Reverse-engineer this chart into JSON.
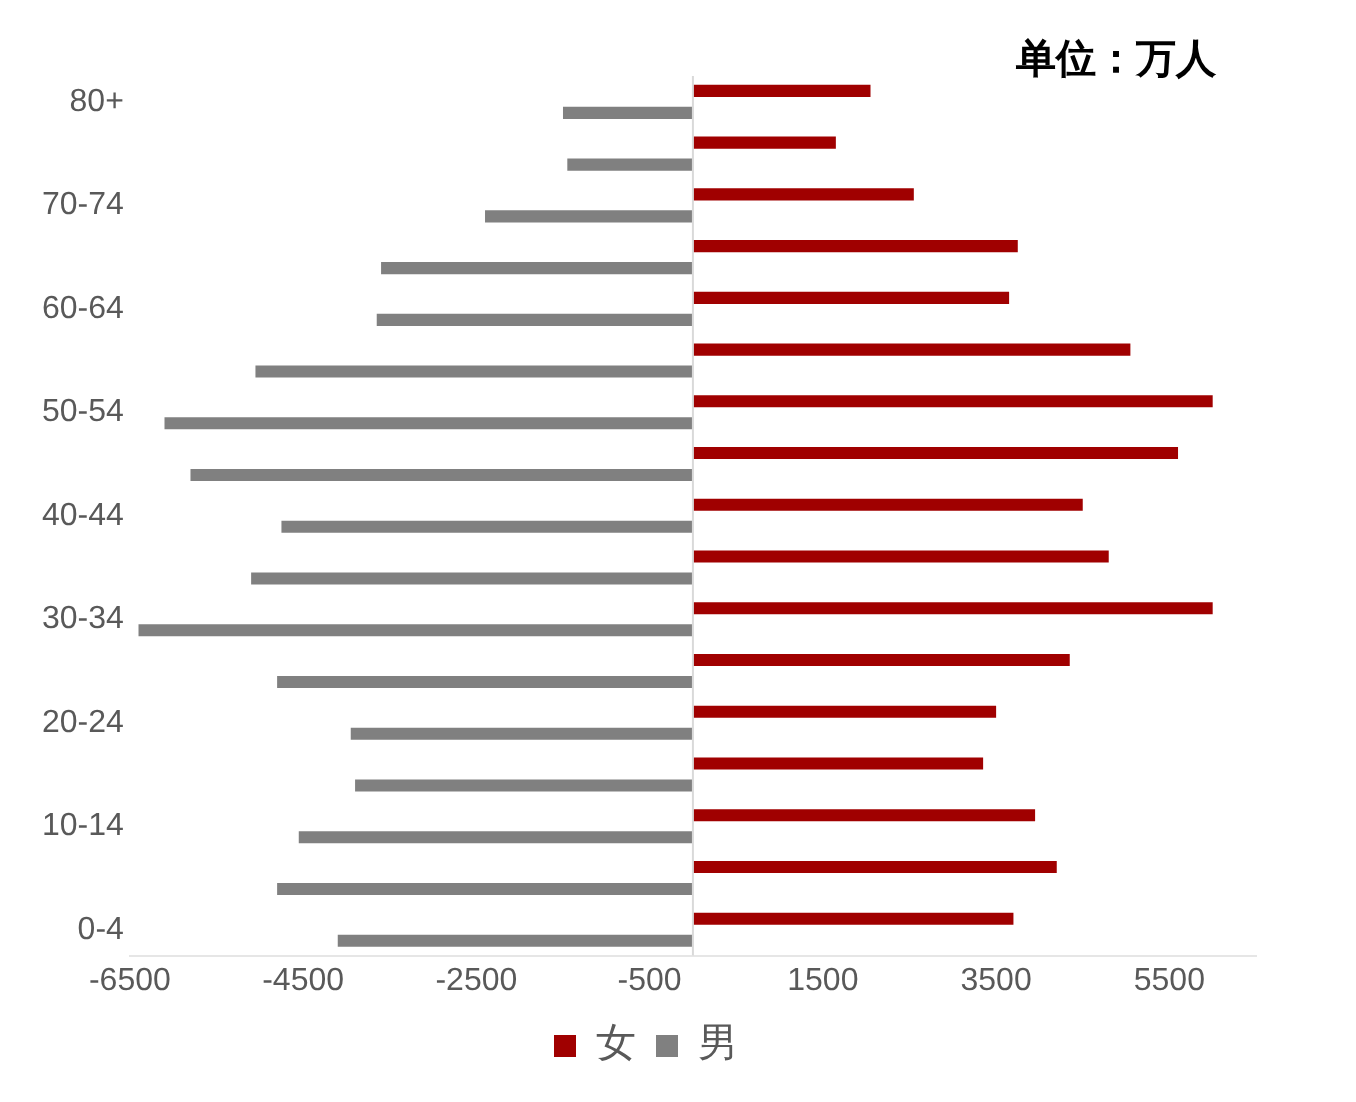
{
  "chart_data": {
    "type": "bar",
    "orientation": "horizontal",
    "categories": [
      "80+",
      null,
      "70-74",
      null,
      "60-64",
      null,
      "50-54",
      null,
      "40-44",
      null,
      "30-34",
      null,
      "20-24",
      null,
      "10-14",
      null,
      "0-4"
    ],
    "series": [
      {
        "name": "女",
        "color": "#a00000",
        "values": [
          2050,
          1650,
          2550,
          3750,
          3650,
          5050,
          6000,
          5600,
          4500,
          4800,
          6000,
          4350,
          3500,
          3350,
          3950,
          4200,
          3700
        ]
      },
      {
        "name": "男",
        "color": "#808080",
        "values": [
          -1500,
          -1450,
          -2400,
          -3600,
          -3650,
          -5050,
          -6100,
          -5800,
          -4750,
          -5100,
          -6400,
          -4800,
          -3950,
          -3900,
          -4550,
          -4800,
          -4100
        ]
      }
    ],
    "xlim": [
      -6500,
      6500
    ],
    "xticks": [
      -6500,
      -4500,
      -2500,
      -500,
      1500,
      3500,
      5500
    ],
    "annotations": [
      "单位：万人"
    ],
    "grid": false,
    "legend": "bottom"
  }
}
